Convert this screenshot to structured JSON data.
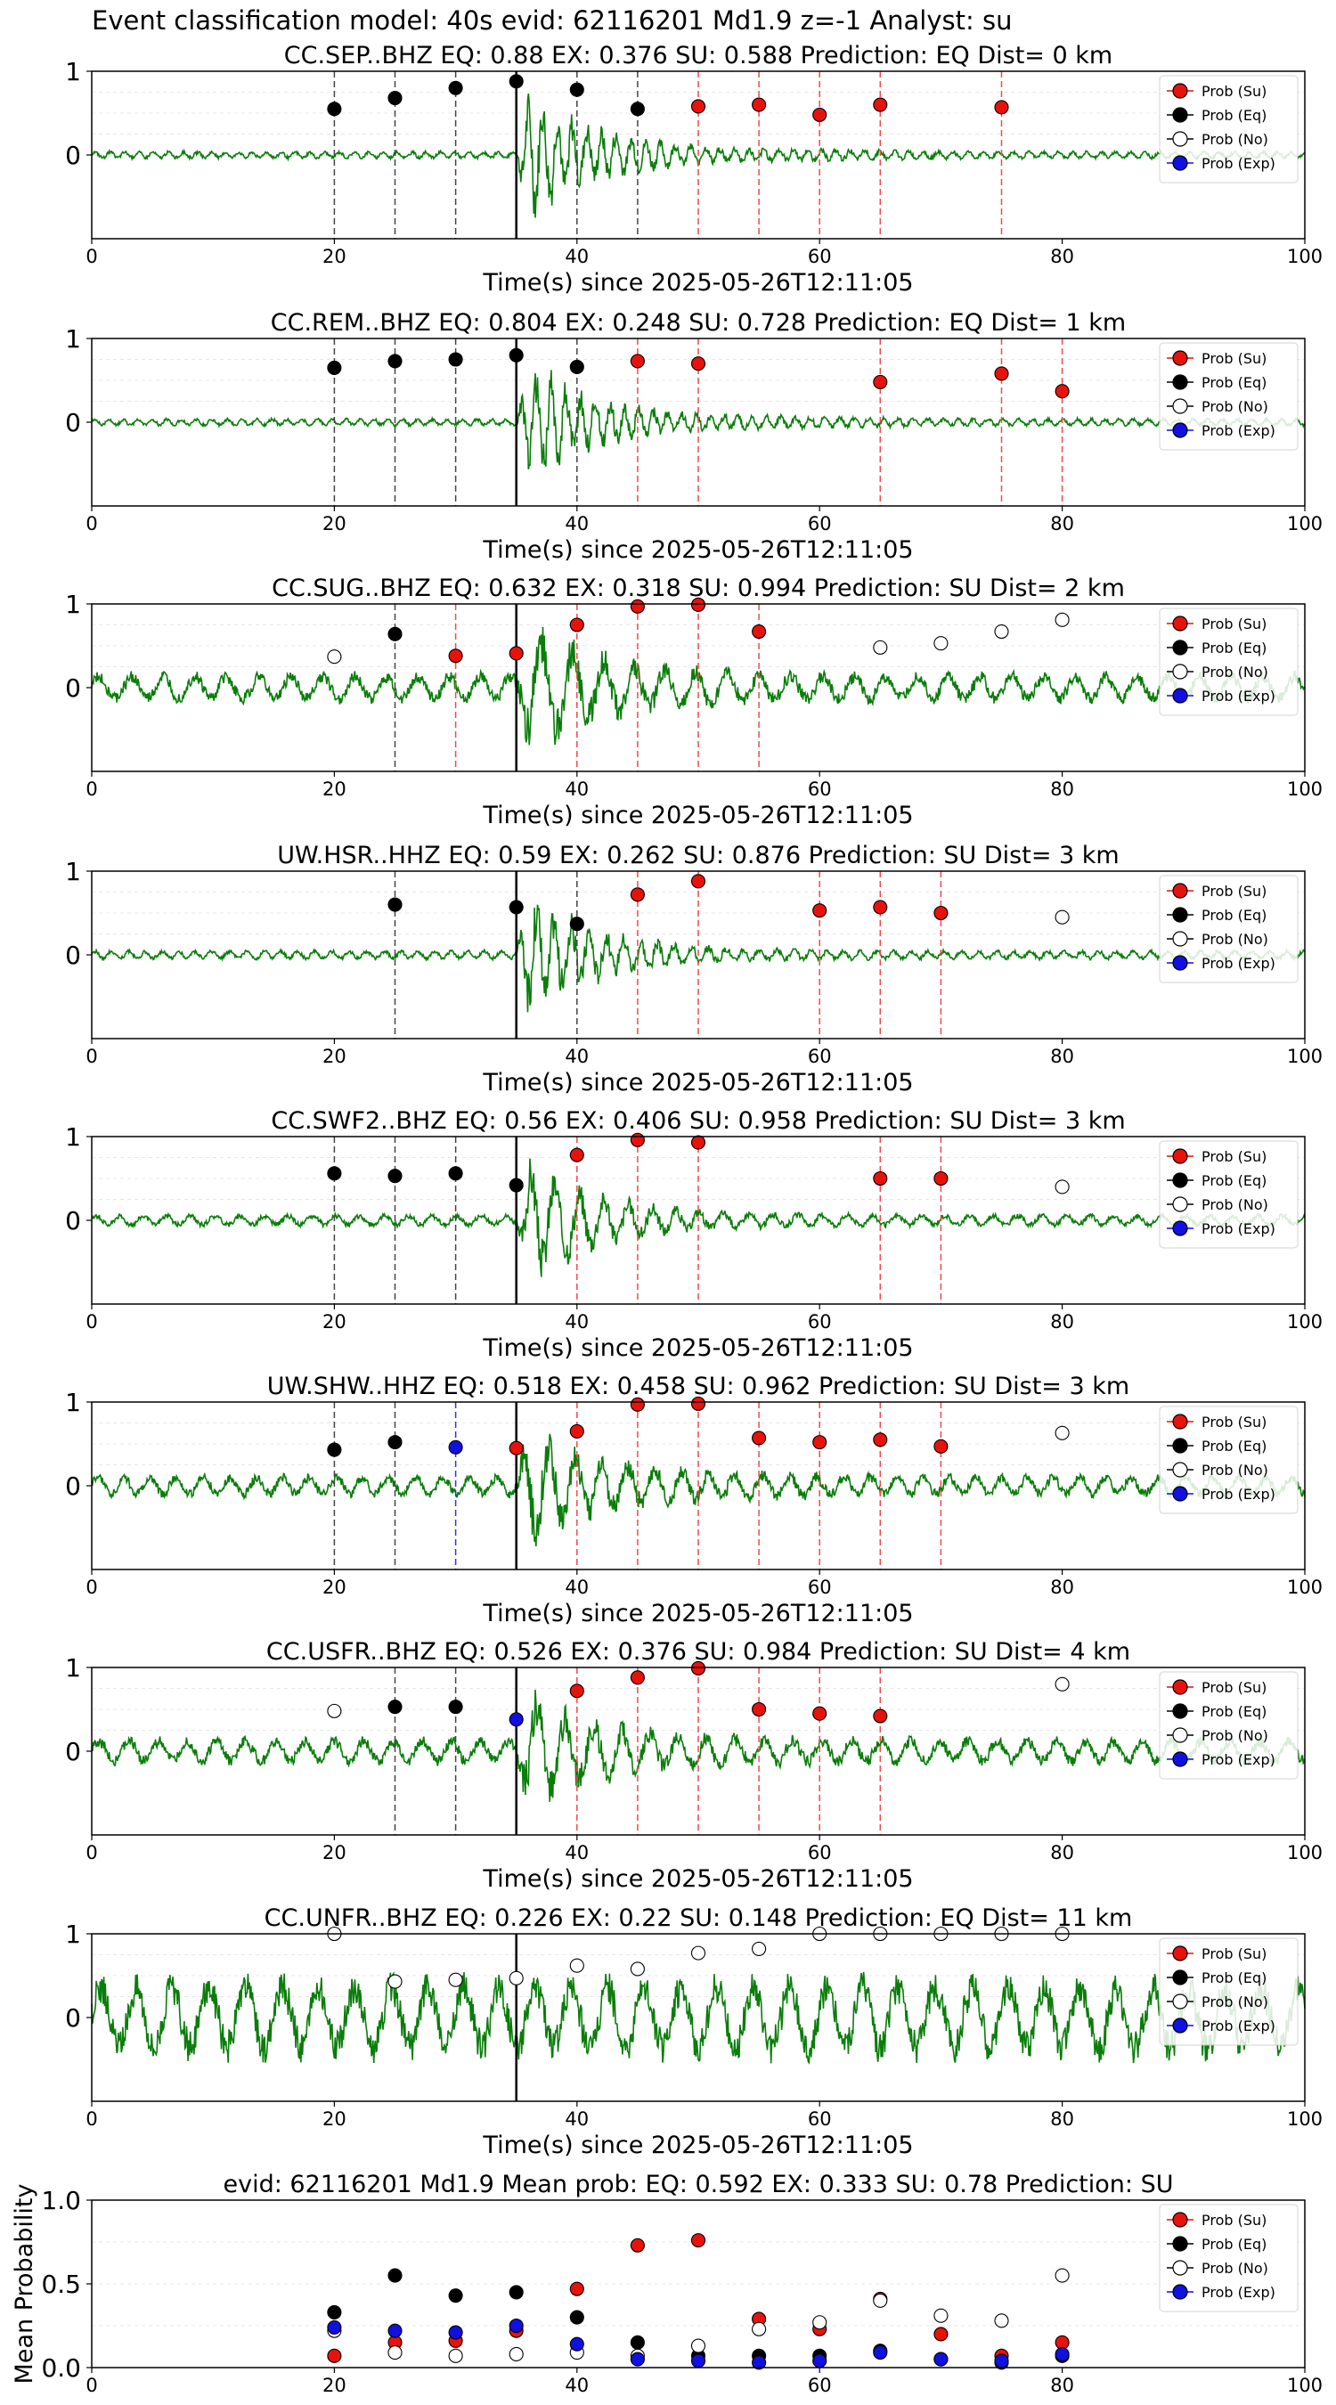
{
  "suptitle": "Event classification model: 40s evid: 62116201 Md1.9 z=-1 Analyst: su",
  "colors": {
    "su": "#e8120c",
    "eq": "#000000",
    "no": "#ffffff",
    "exp": "#1010e0",
    "trace": "#0a7d0a",
    "su_line": "#ef4a4a",
    "eq_line": "#444444",
    "exp_line": "#3333dd"
  },
  "legend_labels": [
    "Prob (Su)",
    "Prob (Eq)",
    "Prob (No)",
    "Prob (Exp)"
  ],
  "chart_data": [
    {
      "type": "scatter",
      "title": "CC.SEP..BHZ   EQ: 0.88  EX: 0.376  SU: 0.588   Prediction: EQ    Dist= 0 km",
      "xlabel": "Time(s) since 2025-05-26T12:11:05",
      "xlim": [
        0,
        100
      ],
      "ylim": [
        -1,
        1
      ],
      "xticks": [
        "0",
        "20",
        "40",
        "60",
        "80",
        "100"
      ],
      "yticks": [
        "1",
        "0"
      ],
      "amp": 0.05,
      "burst": 1.05,
      "bursthold": 0.15,
      "period": 1.2,
      "arrival": 35,
      "marker_line": 35,
      "legend": "right",
      "points": [
        {
          "x": 20,
          "y": 0.55,
          "c": "eq"
        },
        {
          "x": 25,
          "y": 0.68,
          "c": "eq"
        },
        {
          "x": 30,
          "y": 0.8,
          "c": "eq"
        },
        {
          "x": 35,
          "y": 0.88,
          "c": "eq"
        },
        {
          "x": 40,
          "y": 0.78,
          "c": "eq"
        },
        {
          "x": 45,
          "y": 0.55,
          "c": "eq"
        },
        {
          "x": 50,
          "y": 0.58,
          "c": "su"
        },
        {
          "x": 55,
          "y": 0.6,
          "c": "su"
        },
        {
          "x": 60,
          "y": 0.48,
          "c": "su"
        },
        {
          "x": 65,
          "y": 0.6,
          "c": "su"
        },
        {
          "x": 75,
          "y": 0.57,
          "c": "su"
        }
      ]
    },
    {
      "type": "scatter",
      "title": "CC.REM..BHZ   EQ: 0.804  EX: 0.248  SU: 0.728   Prediction: EQ    Dist= 1 km",
      "xlabel": "Time(s) since 2025-05-26T12:11:05",
      "xlim": [
        0,
        100
      ],
      "ylim": [
        -1,
        1
      ],
      "xticks": [
        "0",
        "20",
        "40",
        "60",
        "80",
        "100"
      ],
      "yticks": [
        "1",
        "0"
      ],
      "amp": 0.05,
      "burst": 1.0,
      "bursthold": 0.15,
      "period": 1.2,
      "arrival": 35,
      "marker_line": 35,
      "legend": "right",
      "points": [
        {
          "x": 20,
          "y": 0.65,
          "c": "eq"
        },
        {
          "x": 25,
          "y": 0.73,
          "c": "eq"
        },
        {
          "x": 30,
          "y": 0.75,
          "c": "eq"
        },
        {
          "x": 35,
          "y": 0.8,
          "c": "eq"
        },
        {
          "x": 40,
          "y": 0.66,
          "c": "eq"
        },
        {
          "x": 45,
          "y": 0.73,
          "c": "su"
        },
        {
          "x": 50,
          "y": 0.7,
          "c": "su"
        },
        {
          "x": 65,
          "y": 0.48,
          "c": "su"
        },
        {
          "x": 75,
          "y": 0.58,
          "c": "su"
        },
        {
          "x": 80,
          "y": 0.37,
          "c": "su"
        }
      ]
    },
    {
      "type": "scatter",
      "title": "CC.SUG..BHZ   EQ: 0.632  EX: 0.318  SU: 0.994   Prediction: SU    Dist= 2 km",
      "xlabel": "Time(s) since 2025-05-26T12:11:05",
      "xlim": [
        0,
        100
      ],
      "ylim": [
        -1,
        1
      ],
      "xticks": [
        "0",
        "20",
        "40",
        "60",
        "80",
        "100"
      ],
      "yticks": [
        "1",
        "0"
      ],
      "amp": 0.2,
      "burst": 1.1,
      "bursthold": 0.25,
      "period": 2.6,
      "arrival": 35,
      "marker_line": 35,
      "legend": "right",
      "points": [
        {
          "x": 20,
          "y": 0.37,
          "c": "no"
        },
        {
          "x": 25,
          "y": 0.64,
          "c": "eq"
        },
        {
          "x": 30,
          "y": 0.38,
          "c": "su"
        },
        {
          "x": 35,
          "y": 0.41,
          "c": "su"
        },
        {
          "x": 40,
          "y": 0.75,
          "c": "su"
        },
        {
          "x": 45,
          "y": 0.97,
          "c": "su"
        },
        {
          "x": 50,
          "y": 0.99,
          "c": "su"
        },
        {
          "x": 55,
          "y": 0.67,
          "c": "su"
        },
        {
          "x": 65,
          "y": 0.48,
          "c": "no"
        },
        {
          "x": 70,
          "y": 0.53,
          "c": "no"
        },
        {
          "x": 75,
          "y": 0.67,
          "c": "no"
        },
        {
          "x": 80,
          "y": 0.81,
          "c": "no"
        }
      ]
    },
    {
      "type": "scatter",
      "title": "UW.HSR..HHZ   EQ: 0.59  EX: 0.262  SU: 0.876   Prediction: SU    Dist= 3 km",
      "xlabel": "Time(s) since 2025-05-26T12:11:05",
      "xlim": [
        0,
        100
      ],
      "ylim": [
        -1,
        1
      ],
      "xticks": [
        "0",
        "20",
        "40",
        "60",
        "80",
        "100"
      ],
      "yticks": [
        "1",
        "0"
      ],
      "amp": 0.06,
      "burst": 1.0,
      "bursthold": 0.12,
      "period": 1.4,
      "arrival": 35,
      "marker_line": 35,
      "legend": "right",
      "points": [
        {
          "x": 25,
          "y": 0.6,
          "c": "eq"
        },
        {
          "x": 35,
          "y": 0.57,
          "c": "eq"
        },
        {
          "x": 40,
          "y": 0.37,
          "c": "eq"
        },
        {
          "x": 45,
          "y": 0.72,
          "c": "su"
        },
        {
          "x": 50,
          "y": 0.88,
          "c": "su"
        },
        {
          "x": 60,
          "y": 0.53,
          "c": "su"
        },
        {
          "x": 65,
          "y": 0.57,
          "c": "su"
        },
        {
          "x": 70,
          "y": 0.5,
          "c": "su"
        },
        {
          "x": 80,
          "y": 0.45,
          "c": "no"
        }
      ]
    },
    {
      "type": "scatter",
      "title": "CC.SWF2..BHZ   EQ: 0.56  EX: 0.406  SU: 0.958   Prediction: SU    Dist= 3 km",
      "xlabel": "Time(s) since 2025-05-26T12:11:05",
      "xlim": [
        0,
        100
      ],
      "ylim": [
        -1,
        1
      ],
      "xticks": [
        "0",
        "20",
        "40",
        "60",
        "80",
        "100"
      ],
      "yticks": [
        "1",
        "0"
      ],
      "amp": 0.08,
      "burst": 1.0,
      "bursthold": 0.12,
      "period": 2.0,
      "arrival": 35,
      "marker_line": 35,
      "legend": "right",
      "points": [
        {
          "x": 20,
          "y": 0.56,
          "c": "eq"
        },
        {
          "x": 25,
          "y": 0.53,
          "c": "eq"
        },
        {
          "x": 30,
          "y": 0.56,
          "c": "eq"
        },
        {
          "x": 35,
          "y": 0.42,
          "c": "eq"
        },
        {
          "x": 40,
          "y": 0.78,
          "c": "su"
        },
        {
          "x": 45,
          "y": 0.96,
          "c": "su"
        },
        {
          "x": 50,
          "y": 0.93,
          "c": "su"
        },
        {
          "x": 65,
          "y": 0.5,
          "c": "su"
        },
        {
          "x": 70,
          "y": 0.5,
          "c": "su"
        },
        {
          "x": 80,
          "y": 0.4,
          "c": "no"
        }
      ]
    },
    {
      "type": "scatter",
      "title": "UW.SHW..HHZ   EQ: 0.518  EX: 0.458  SU: 0.962   Prediction: SU    Dist= 3 km",
      "xlabel": "Time(s) since 2025-05-26T12:11:05",
      "xlim": [
        0,
        100
      ],
      "ylim": [
        -1,
        1
      ],
      "xticks": [
        "0",
        "20",
        "40",
        "60",
        "80",
        "100"
      ],
      "yticks": [
        "1",
        "0"
      ],
      "amp": 0.15,
      "burst": 1.0,
      "bursthold": 0.3,
      "period": 2.2,
      "arrival": 35,
      "marker_line": 35,
      "legend": "right",
      "points": [
        {
          "x": 20,
          "y": 0.43,
          "c": "eq"
        },
        {
          "x": 25,
          "y": 0.52,
          "c": "eq"
        },
        {
          "x": 30,
          "y": 0.46,
          "c": "exp"
        },
        {
          "x": 35,
          "y": 0.45,
          "c": "su"
        },
        {
          "x": 40,
          "y": 0.65,
          "c": "su"
        },
        {
          "x": 45,
          "y": 0.97,
          "c": "su"
        },
        {
          "x": 50,
          "y": 0.98,
          "c": "su"
        },
        {
          "x": 55,
          "y": 0.57,
          "c": "su"
        },
        {
          "x": 60,
          "y": 0.52,
          "c": "su"
        },
        {
          "x": 65,
          "y": 0.55,
          "c": "su"
        },
        {
          "x": 70,
          "y": 0.47,
          "c": "su"
        },
        {
          "x": 80,
          "y": 0.63,
          "c": "no"
        }
      ]
    },
    {
      "type": "scatter",
      "title": "CC.USFR..BHZ   EQ: 0.526  EX: 0.376  SU: 0.984   Prediction: SU    Dist= 4 km",
      "xlabel": "Time(s) since 2025-05-26T12:11:05",
      "xlim": [
        0,
        100
      ],
      "ylim": [
        -1,
        1
      ],
      "xticks": [
        "0",
        "20",
        "40",
        "60",
        "80",
        "100"
      ],
      "yticks": [
        "1",
        "0"
      ],
      "amp": 0.18,
      "burst": 0.95,
      "bursthold": 0.22,
      "period": 2.4,
      "arrival": 35,
      "marker_line": 35,
      "legend": "right",
      "points": [
        {
          "x": 20,
          "y": 0.48,
          "c": "no"
        },
        {
          "x": 25,
          "y": 0.53,
          "c": "eq"
        },
        {
          "x": 30,
          "y": 0.53,
          "c": "eq"
        },
        {
          "x": 35,
          "y": 0.38,
          "c": "exp"
        },
        {
          "x": 40,
          "y": 0.72,
          "c": "su"
        },
        {
          "x": 45,
          "y": 0.88,
          "c": "su"
        },
        {
          "x": 50,
          "y": 0.99,
          "c": "su"
        },
        {
          "x": 55,
          "y": 0.5,
          "c": "su"
        },
        {
          "x": 60,
          "y": 0.45,
          "c": "su"
        },
        {
          "x": 65,
          "y": 0.42,
          "c": "su"
        },
        {
          "x": 80,
          "y": 0.8,
          "c": "no"
        }
      ]
    },
    {
      "type": "scatter",
      "title": "CC.UNFR..BHZ   EQ: 0.226  EX: 0.22  SU: 0.148   Prediction: EQ    Dist= 11 km",
      "xlabel": "Time(s) since 2025-05-26T12:11:05",
      "xlim": [
        0,
        100
      ],
      "ylim": [
        -1,
        1
      ],
      "xticks": [
        "0",
        "20",
        "40",
        "60",
        "80",
        "100"
      ],
      "yticks": [
        "1",
        "0"
      ],
      "amp": 0.55,
      "burst": 0.55,
      "bursthold": 0.55,
      "period": 3.0,
      "arrival": 35,
      "marker_line": 35,
      "legend": "right",
      "points": [
        {
          "x": 20,
          "y": 1.0,
          "c": "no"
        },
        {
          "x": 25,
          "y": 0.43,
          "c": "no"
        },
        {
          "x": 30,
          "y": 0.45,
          "c": "no"
        },
        {
          "x": 35,
          "y": 0.47,
          "c": "no"
        },
        {
          "x": 40,
          "y": 0.62,
          "c": "no"
        },
        {
          "x": 45,
          "y": 0.58,
          "c": "no"
        },
        {
          "x": 50,
          "y": 0.77,
          "c": "no"
        },
        {
          "x": 55,
          "y": 0.82,
          "c": "no"
        },
        {
          "x": 60,
          "y": 1.0,
          "c": "no"
        },
        {
          "x": 65,
          "y": 1.0,
          "c": "no"
        },
        {
          "x": 70,
          "y": 1.0,
          "c": "no"
        },
        {
          "x": 75,
          "y": 1.0,
          "c": "no"
        },
        {
          "x": 80,
          "y": 1.0,
          "c": "no"
        }
      ]
    },
    {
      "type": "scatter",
      "title": "evid: 62116201  Md1.9   Mean prob:    EQ: 0.592  EX: 0.333  SU: 0.78   Prediction: SU",
      "xlabel": "",
      "ylabel": "Mean Probability",
      "xlim": [
        0,
        100
      ],
      "ylim": [
        0,
        1
      ],
      "xticks": [
        "0",
        "20",
        "40",
        "60",
        "80",
        "100"
      ],
      "yticks": [
        "1.0",
        "0.5",
        "0.0"
      ],
      "legend": "right",
      "series": [
        {
          "name": "Prob (Su)",
          "c": "su",
          "x": [
            20,
            25,
            30,
            35,
            40,
            45,
            50,
            55,
            60,
            65,
            70,
            75,
            80
          ],
          "y": [
            0.07,
            0.15,
            0.16,
            0.22,
            0.47,
            0.73,
            0.76,
            0.29,
            0.23,
            0.41,
            0.2,
            0.07,
            0.15
          ]
        },
        {
          "name": "Prob (Eq)",
          "c": "eq",
          "x": [
            20,
            25,
            30,
            35,
            40,
            45,
            50,
            55,
            60,
            65,
            70,
            75,
            80
          ],
          "y": [
            0.33,
            0.55,
            0.43,
            0.45,
            0.3,
            0.15,
            0.07,
            0.07,
            0.07,
            0.1,
            0.05,
            0.03,
            0.07
          ]
        },
        {
          "name": "Prob (No)",
          "c": "no",
          "x": [
            20,
            25,
            30,
            35,
            40,
            45,
            50,
            55,
            60,
            65,
            70,
            75,
            80
          ],
          "y": [
            0.22,
            0.09,
            0.07,
            0.08,
            0.09,
            0.07,
            0.13,
            0.23,
            0.27,
            0.4,
            0.31,
            0.28,
            0.55
          ]
        },
        {
          "name": "Prob (Exp)",
          "c": "exp",
          "x": [
            20,
            25,
            30,
            35,
            40,
            45,
            50,
            55,
            60,
            65,
            70,
            75,
            80
          ],
          "y": [
            0.24,
            0.22,
            0.21,
            0.25,
            0.14,
            0.05,
            0.04,
            0.03,
            0.04,
            0.09,
            0.05,
            0.04,
            0.08
          ]
        }
      ]
    }
  ]
}
